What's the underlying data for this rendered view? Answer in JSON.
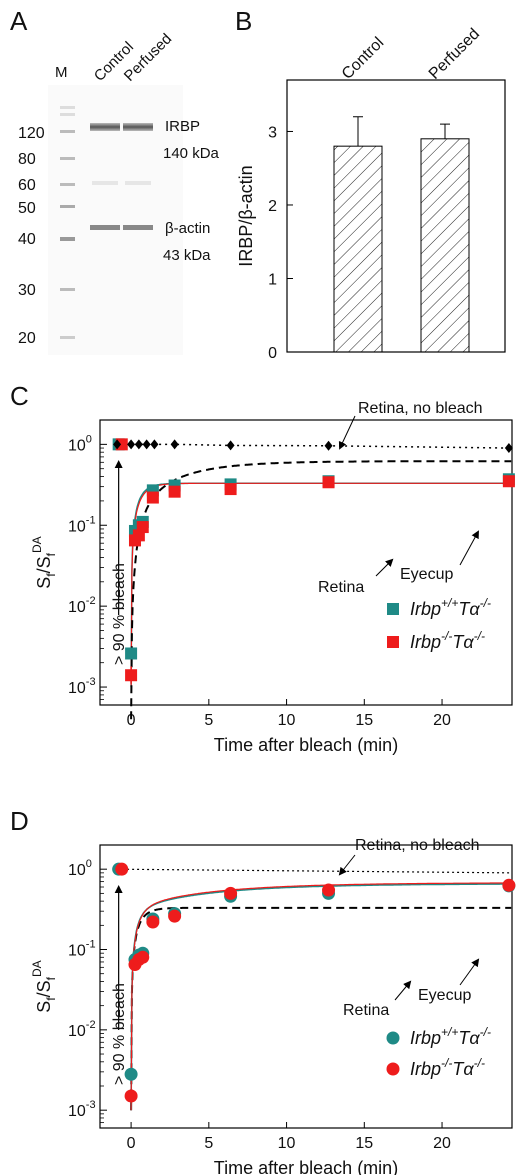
{
  "panels": {
    "A": {
      "label": "A",
      "lanes": [
        "M",
        "Control",
        "Perfused"
      ],
      "marker_kda": [
        "120",
        "80",
        "60",
        "50",
        "40",
        "30",
        "20"
      ],
      "bands": [
        {
          "name": "IRBP",
          "size": "140 kDa"
        },
        {
          "name": "β-actin",
          "size": "43 kDa"
        }
      ]
    },
    "B": {
      "label": "B"
    },
    "C": {
      "label": "C"
    },
    "D": {
      "label": "D"
    }
  },
  "colors": {
    "teal": "#1f8a86",
    "red": "#ee1c1c",
    "black": "#000000"
  },
  "chart_data": [
    {
      "panel": "B",
      "type": "bar",
      "categories": [
        "Control",
        "Perfused"
      ],
      "values": [
        2.8,
        2.9
      ],
      "errors": [
        0.4,
        0.2
      ],
      "ylabel": "IRBP/β-actin",
      "ylim": [
        0,
        3.7
      ],
      "yticks": [
        "0",
        "1",
        "2",
        "3"
      ],
      "bar_fill": "hatched"
    },
    {
      "panel": "C",
      "type": "scatter",
      "xlabel": "Time after bleach (min)",
      "ylabel_main": "S",
      "ylabel_sub": "f",
      "ylabel_den": "/S",
      "ylabel_sup": "DA",
      "y_scale": "log",
      "xlim": [
        -2,
        24.5
      ],
      "ylim": [
        0.0006,
        2
      ],
      "xticks": [
        "0",
        "5",
        "10",
        "15",
        "20"
      ],
      "yticks": [
        "10",
        "10",
        "10",
        "10"
      ],
      "ytick_exponents": [
        "0",
        "-1",
        "-2",
        "-3"
      ],
      "series": [
        {
          "name_main": "Irbp",
          "name_sup1": "+/+",
          "name_mid": "Tα",
          "name_sup2": "-/-",
          "marker": "square",
          "color": "#1f8a86",
          "x": [
            -0.8,
            0,
            0.25,
            0.5,
            0.75,
            1.4,
            2.8,
            6.4,
            12.7,
            24.3
          ],
          "y": [
            1.0,
            0.0026,
            0.085,
            0.1,
            0.11,
            0.27,
            0.31,
            0.32,
            0.35,
            0.37
          ]
        },
        {
          "name_main": "Irbp",
          "name_sup1": "-/-",
          "name_mid": "Tα",
          "name_sup2": "-/-",
          "marker": "square",
          "color": "#ee1c1c",
          "x": [
            -0.6,
            0,
            0.25,
            0.5,
            0.75,
            1.4,
            2.8,
            6.4,
            12.7,
            24.3
          ],
          "y": [
            1.0,
            0.0014,
            0.065,
            0.075,
            0.095,
            0.22,
            0.26,
            0.28,
            0.34,
            0.35
          ]
        },
        {
          "name": "Retina, no bleach",
          "marker": "diamond",
          "color": "#000000",
          "line": "dotted",
          "x": [
            -0.9,
            0.0,
            0.5,
            1.0,
            1.5,
            2.8,
            6.4,
            12.7,
            24.3
          ],
          "y": [
            1.0,
            1.0,
            1.0,
            1.0,
            1.0,
            1.0,
            0.97,
            0.96,
            0.9
          ]
        }
      ],
      "curves": [
        {
          "name": "Retina",
          "line": "solid",
          "plateau": 0.33
        },
        {
          "name": "Eyecup",
          "line": "dashed",
          "plateau": 0.62
        }
      ],
      "annotations": [
        "Retina, no bleach",
        "Eyecup",
        "Retina",
        "> 90 % bleach"
      ]
    },
    {
      "panel": "D",
      "type": "scatter",
      "xlabel": "Time after bleach (min)",
      "ylabel_main": "S",
      "ylabel_sub": "f",
      "ylabel_den": "/S",
      "ylabel_sup": "DA",
      "y_scale": "log",
      "xlim": [
        -2,
        24.5
      ],
      "ylim": [
        0.0006,
        2
      ],
      "xticks": [
        "0",
        "5",
        "10",
        "15",
        "20"
      ],
      "yticks": [
        "10",
        "10",
        "10",
        "10"
      ],
      "ytick_exponents": [
        "0",
        "-1",
        "-2",
        "-3"
      ],
      "series": [
        {
          "name_main": "Irbp",
          "name_sup1": "+/+",
          "name_mid": "Tα",
          "name_sup2": "-/-",
          "marker": "circle",
          "color": "#1f8a86",
          "x": [
            -0.8,
            0,
            0.25,
            0.5,
            0.75,
            1.4,
            2.8,
            6.4,
            12.7,
            24.3
          ],
          "y": [
            1.0,
            0.0028,
            0.075,
            0.085,
            0.09,
            0.24,
            0.28,
            0.46,
            0.5,
            0.62
          ]
        },
        {
          "name_main": "Irbp",
          "name_sup1": "-/-",
          "name_mid": "Tα",
          "name_sup2": "-/-",
          "marker": "circle",
          "color": "#ee1c1c",
          "x": [
            -0.6,
            0,
            0.25,
            0.5,
            0.75,
            1.4,
            2.8,
            6.4,
            12.7,
            24.3
          ],
          "y": [
            1.0,
            0.0015,
            0.065,
            0.075,
            0.08,
            0.22,
            0.26,
            0.5,
            0.55,
            0.63
          ]
        }
      ],
      "curves": [
        {
          "name": "Retina, no bleach",
          "line": "dotted",
          "level": 0.95
        },
        {
          "name": "Retina",
          "line": "dashed",
          "plateau": 0.33
        },
        {
          "name": "Eyecup",
          "line": "solid",
          "plateau": 0.65
        }
      ],
      "annotations": [
        "Retina, no bleach",
        "Eyecup",
        "Retina",
        "> 90 % bleach"
      ]
    }
  ]
}
